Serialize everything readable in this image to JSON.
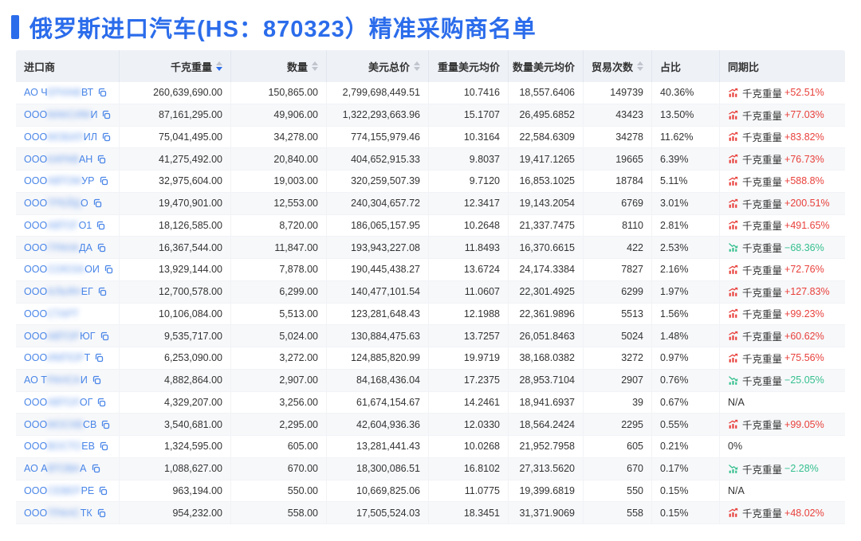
{
  "title": {
    "text": "俄罗斯进口汽车(HS：870323）精准采购商名单"
  },
  "colors": {
    "accent_blue": "#2b6ceb",
    "link_blue": "#4a86e8",
    "up_red": "#e8413c",
    "down_green": "#35c08e",
    "header_bg": "#eef1f6",
    "stripe_bg": "#f7f8fa"
  },
  "table": {
    "yoy_label": "千克重量",
    "columns": [
      {
        "key": "importer",
        "label": "进口商",
        "align": "left",
        "sortable": false
      },
      {
        "key": "kg-weight",
        "label": "千克重量",
        "align": "right",
        "sortable": true,
        "sort": "desc"
      },
      {
        "key": "quantity",
        "label": "数量",
        "align": "right",
        "sortable": true
      },
      {
        "key": "usd-total",
        "label": "美元总价",
        "align": "right",
        "sortable": true
      },
      {
        "key": "weight-usd-avg",
        "label": "重量美元均价",
        "align": "right",
        "sortable": false
      },
      {
        "key": "qty-usd-avg",
        "label": "数量美元均价",
        "align": "right",
        "sortable": false
      },
      {
        "key": "trade-count",
        "label": "贸易次数",
        "align": "right",
        "sortable": true
      },
      {
        "key": "share",
        "label": "占比",
        "align": "left",
        "sortable": false
      },
      {
        "key": "yoy",
        "label": "同期比",
        "align": "left",
        "sortable": false
      }
    ],
    "rows": [
      {
        "start": "АО Ч",
        "blur": "ЕРИАВ",
        "end": "ВТ",
        "copy": true,
        "kg": "260,639,690.00",
        "qty": "150,865.00",
        "usd": "2,799,698,449.51",
        "kg_avg": "10.7416",
        "qty_avg": "18,557.6406",
        "trades": "149739",
        "share": "40.36%",
        "yoy": {
          "kind": "up",
          "value": "+52.51%"
        }
      },
      {
        "start": "ООО ",
        "blur": "МАКСИМ",
        "end": "И",
        "copy": true,
        "kg": "87,161,295.00",
        "qty": "49,906.00",
        "usd": "1,322,293,663.96",
        "kg_avg": "15.1707",
        "qty_avg": "26,495.6852",
        "trades": "43423",
        "share": "13.50%",
        "yoy": {
          "kind": "up",
          "value": "+77.03%"
        }
      },
      {
        "start": "ООО ",
        "blur": "МОБИЛ",
        "end": "ИЛ",
        "copy": true,
        "kg": "75,041,495.00",
        "qty": "34,278.00",
        "usd": "774,155,979.46",
        "kg_avg": "10.3164",
        "qty_avg": "22,584.6309",
        "trades": "34278",
        "share": "11.62%",
        "yoy": {
          "kind": "up",
          "value": "+83.82%"
        }
      },
      {
        "start": "ООО ",
        "blur": "КАРАВ",
        "end": "АН",
        "copy": true,
        "kg": "41,275,492.00",
        "qty": "20,840.00",
        "usd": "404,652,915.33",
        "kg_avg": "9.8037",
        "qty_avg": "19,417.1265",
        "trades": "19665",
        "share": "6.39%",
        "yoy": {
          "kind": "up",
          "value": "+76.73%"
        }
      },
      {
        "start": "ООО ",
        "blur": "АВТОМ",
        "end": "УР",
        "copy": true,
        "kg": "32,975,604.00",
        "qty": "19,003.00",
        "usd": "320,259,507.39",
        "kg_avg": "9.7120",
        "qty_avg": "16,853.1025",
        "trades": "18784",
        "share": "5.11%",
        "yoy": {
          "kind": "up",
          "value": "+588.8%"
        }
      },
      {
        "start": "ООО ",
        "blur": "ТРЕЙД",
        "end": "О",
        "copy": true,
        "kg": "19,470,901.00",
        "qty": "12,553.00",
        "usd": "240,304,657.72",
        "kg_avg": "12.3417",
        "qty_avg": "19,143.2054",
        "trades": "6769",
        "share": "3.01%",
        "yoy": {
          "kind": "up",
          "value": "+200.51%"
        }
      },
      {
        "start": "ООО ",
        "blur": "АВТОГ",
        "end": "О1",
        "copy": true,
        "kg": "18,126,585.00",
        "qty": "8,720.00",
        "usd": "186,065,157.95",
        "kg_avg": "10.2648",
        "qty_avg": "21,337.7475",
        "trades": "8110",
        "share": "2.81%",
        "yoy": {
          "kind": "up",
          "value": "+491.65%"
        }
      },
      {
        "start": "ООО ",
        "blur": "ГРАНА",
        "end": "ДА",
        "copy": true,
        "kg": "16,367,544.00",
        "qty": "11,847.00",
        "usd": "193,943,227.08",
        "kg_avg": "11.8493",
        "qty_avg": "16,370.6615",
        "trades": "422",
        "share": "2.53%",
        "yoy": {
          "kind": "down",
          "value": "−68.36%"
        }
      },
      {
        "start": "ООО ",
        "blur": "СОЮЗА",
        "end": "ОИ",
        "copy": true,
        "kg": "13,929,144.00",
        "qty": "7,878.00",
        "usd": "190,445,438.27",
        "kg_avg": "13.6724",
        "qty_avg": "24,174.3384",
        "trades": "7827",
        "share": "2.16%",
        "yoy": {
          "kind": "up",
          "value": "+72.76%"
        }
      },
      {
        "start": "ООО ",
        "blur": "АЛЬЯН",
        "end": "ЕГ",
        "copy": true,
        "kg": "12,700,578.00",
        "qty": "6,299.00",
        "usd": "140,477,101.54",
        "kg_avg": "11.0607",
        "qty_avg": "22,301.4925",
        "trades": "6299",
        "share": "1.97%",
        "yoy": {
          "kind": "up",
          "value": "+127.83%"
        }
      },
      {
        "start": "ООО ",
        "blur": "СТАРТ",
        "end": "",
        "copy": false,
        "kg": "10,106,084.00",
        "qty": "5,513.00",
        "usd": "123,281,648.43",
        "kg_avg": "12.1988",
        "qty_avg": "22,361.9896",
        "trades": "5513",
        "share": "1.56%",
        "yoy": {
          "kind": "up",
          "value": "+99.23%"
        }
      },
      {
        "start": "ООО ",
        "blur": "АВТОР",
        "end": "ЮГ",
        "copy": true,
        "kg": "9,535,717.00",
        "qty": "5,024.00",
        "usd": "130,884,475.63",
        "kg_avg": "13.7257",
        "qty_avg": "26,051.8463",
        "trades": "5024",
        "share": "1.48%",
        "yoy": {
          "kind": "up",
          "value": "+60.62%"
        }
      },
      {
        "start": "ООО ",
        "blur": "ИМПОР",
        "end": "Т",
        "copy": true,
        "kg": "6,253,090.00",
        "qty": "3,272.00",
        "usd": "124,885,820.99",
        "kg_avg": "19.9719",
        "qty_avg": "38,168.0382",
        "trades": "3272",
        "share": "0.97%",
        "yoy": {
          "kind": "up",
          "value": "+75.56%"
        }
      },
      {
        "start": "АО Т",
        "blur": "РАНСА",
        "end": "И",
        "copy": true,
        "kg": "4,882,864.00",
        "qty": "2,907.00",
        "usd": "84,168,436.04",
        "kg_avg": "17.2375",
        "qty_avg": "28,953.7104",
        "trades": "2907",
        "share": "0.76%",
        "yoy": {
          "kind": "down",
          "value": "−25.05%"
        }
      },
      {
        "start": "ООО ",
        "blur": "АВТОЛ",
        "end": "ОГ",
        "copy": true,
        "kg": "4,329,207.00",
        "qty": "3,256.00",
        "usd": "61,674,154.67",
        "kg_avg": "14.2461",
        "qty_avg": "18,941.6937",
        "trades": "39",
        "share": "0.67%",
        "yoy": {
          "kind": "plain",
          "value": "N/A"
        }
      },
      {
        "start": "ООО ",
        "blur": "МОСКВ",
        "end": "СВ",
        "copy": true,
        "kg": "3,540,681.00",
        "qty": "2,295.00",
        "usd": "42,604,936.36",
        "kg_avg": "12.0330",
        "qty_avg": "18,564.2424",
        "trades": "2295",
        "share": "0.55%",
        "yoy": {
          "kind": "up",
          "value": "+99.05%"
        }
      },
      {
        "start": "ООО ",
        "blur": "ВОСТО",
        "end": "ЕВ",
        "copy": true,
        "kg": "1,324,595.00",
        "qty": "605.00",
        "usd": "13,281,441.43",
        "kg_avg": "10.0268",
        "qty_avg": "21,952.7958",
        "trades": "605",
        "share": "0.21%",
        "yoy": {
          "kind": "plain",
          "value": "0%"
        }
      },
      {
        "start": "АО А",
        "blur": "ВТОВА",
        "end": "А",
        "copy": true,
        "kg": "1,088,627.00",
        "qty": "670.00",
        "usd": "18,300,086.51",
        "kg_avg": "16.8102",
        "qty_avg": "27,313.5620",
        "trades": "670",
        "share": "0.17%",
        "yoy": {
          "kind": "down",
          "value": "−2.28%"
        }
      },
      {
        "start": "ООО ",
        "blur": "СЕВЕР",
        "end": "РЕ",
        "copy": true,
        "kg": "963,194.00",
        "qty": "550.00",
        "usd": "10,669,825.06",
        "kg_avg": "11.0775",
        "qty_avg": "19,399.6819",
        "trades": "550",
        "share": "0.15%",
        "yoy": {
          "kind": "plain",
          "value": "N/A"
        }
      },
      {
        "start": "ООО ",
        "blur": "ТРАНС",
        "end": "ТК",
        "copy": true,
        "kg": "954,232.00",
        "qty": "558.00",
        "usd": "17,505,524.03",
        "kg_avg": "18.3451",
        "qty_avg": "31,371.9069",
        "trades": "558",
        "share": "0.15%",
        "yoy": {
          "kind": "up",
          "value": "+48.02%"
        }
      }
    ]
  }
}
